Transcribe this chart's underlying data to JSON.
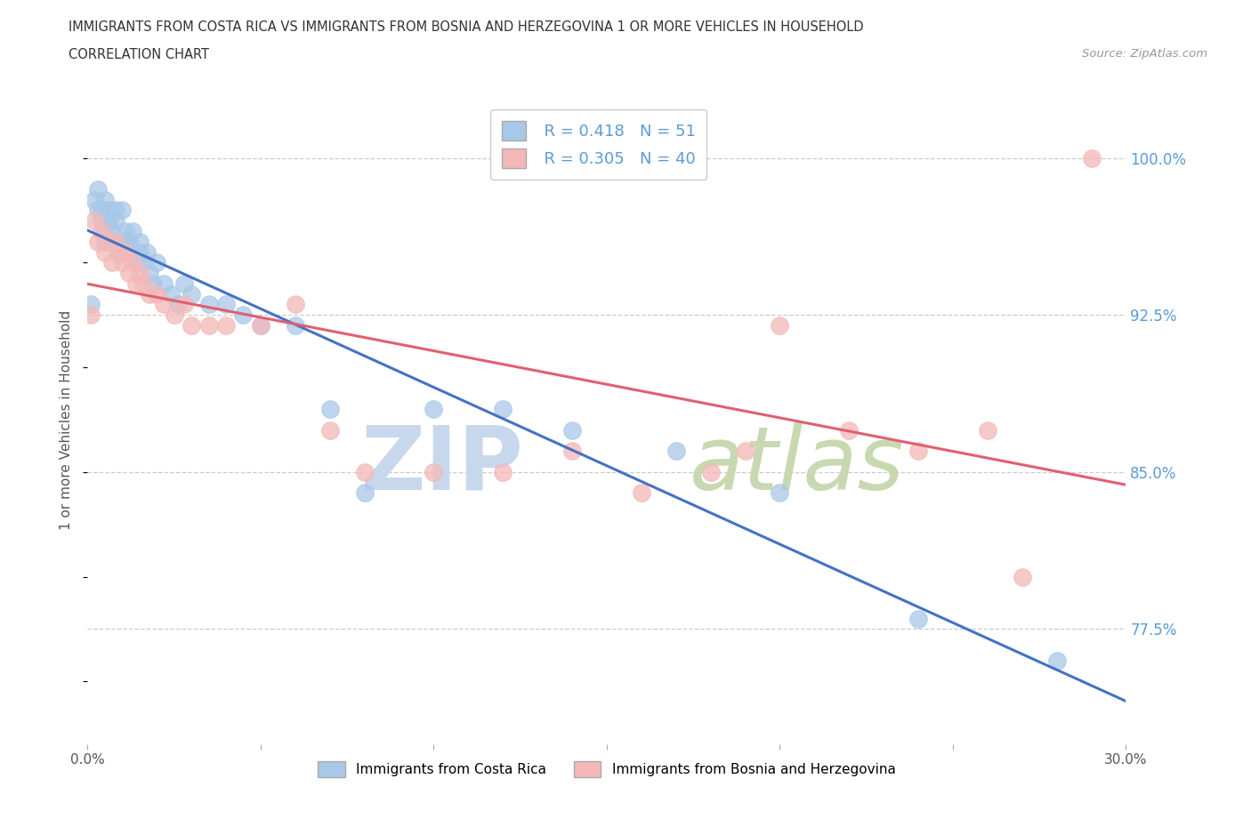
{
  "title_line1": "IMMIGRANTS FROM COSTA RICA VS IMMIGRANTS FROM BOSNIA AND HERZEGOVINA 1 OR MORE VEHICLES IN HOUSEHOLD",
  "title_line2": "CORRELATION CHART",
  "source_text": "Source: ZipAtlas.com",
  "ylabel": "1 or more Vehicles in Household",
  "xlim": [
    0.0,
    0.3
  ],
  "ylim": [
    0.72,
    1.03
  ],
  "yticks": [
    0.775,
    0.85,
    0.925,
    1.0
  ],
  "ytick_labels": [
    "77.5%",
    "85.0%",
    "92.5%",
    "100.0%"
  ],
  "xticks": [
    0.0,
    0.05,
    0.1,
    0.15,
    0.2,
    0.25,
    0.3
  ],
  "xtick_labels": [
    "0.0%",
    "",
    "",
    "",
    "",
    "",
    "30.0%"
  ],
  "legend_label1": "Immigrants from Costa Rica",
  "legend_label2": "Immigrants from Bosnia and Herzegovina",
  "R1": 0.418,
  "N1": 51,
  "R2": 0.305,
  "N2": 40,
  "color1": "#a8c8e8",
  "color2": "#f4b8b8",
  "line_color1": "#4472c4",
  "line_color2": "#e06070",
  "watermark_zip": "ZIP",
  "watermark_atlas": "atlas",
  "watermark_color_zip": "#c8d8ec",
  "watermark_color_atlas": "#c8d8b0",
  "grid_color": "#cccccc",
  "ytick_color": "#5b9bd5",
  "scatter1_x": [
    0.001,
    0.002,
    0.003,
    0.003,
    0.004,
    0.004,
    0.005,
    0.005,
    0.005,
    0.006,
    0.006,
    0.007,
    0.007,
    0.008,
    0.008,
    0.009,
    0.009,
    0.01,
    0.01,
    0.011,
    0.011,
    0.012,
    0.012,
    0.013,
    0.014,
    0.015,
    0.015,
    0.016,
    0.017,
    0.018,
    0.019,
    0.02,
    0.022,
    0.024,
    0.026,
    0.028,
    0.03,
    0.035,
    0.04,
    0.045,
    0.05,
    0.06,
    0.07,
    0.08,
    0.1,
    0.12,
    0.14,
    0.17,
    0.2,
    0.24,
    0.28
  ],
  "scatter1_y": [
    0.93,
    0.98,
    0.975,
    0.985,
    0.97,
    0.975,
    0.965,
    0.98,
    0.96,
    0.97,
    0.975,
    0.965,
    0.96,
    0.97,
    0.975,
    0.96,
    0.955,
    0.96,
    0.975,
    0.96,
    0.965,
    0.955,
    0.96,
    0.965,
    0.95,
    0.96,
    0.955,
    0.95,
    0.955,
    0.945,
    0.94,
    0.95,
    0.94,
    0.935,
    0.93,
    0.94,
    0.935,
    0.93,
    0.93,
    0.925,
    0.92,
    0.92,
    0.88,
    0.84,
    0.88,
    0.88,
    0.87,
    0.86,
    0.84,
    0.78,
    0.76
  ],
  "scatter2_x": [
    0.001,
    0.002,
    0.003,
    0.004,
    0.005,
    0.006,
    0.007,
    0.008,
    0.009,
    0.01,
    0.011,
    0.012,
    0.013,
    0.014,
    0.015,
    0.016,
    0.018,
    0.02,
    0.022,
    0.025,
    0.028,
    0.03,
    0.035,
    0.04,
    0.05,
    0.06,
    0.07,
    0.08,
    0.1,
    0.12,
    0.14,
    0.16,
    0.18,
    0.19,
    0.2,
    0.22,
    0.24,
    0.26,
    0.27,
    0.29
  ],
  "scatter2_y": [
    0.925,
    0.97,
    0.96,
    0.965,
    0.955,
    0.96,
    0.95,
    0.96,
    0.955,
    0.95,
    0.955,
    0.945,
    0.95,
    0.94,
    0.945,
    0.94,
    0.935,
    0.935,
    0.93,
    0.925,
    0.93,
    0.92,
    0.92,
    0.92,
    0.92,
    0.93,
    0.87,
    0.85,
    0.85,
    0.85,
    0.86,
    0.84,
    0.85,
    0.86,
    0.92,
    0.87,
    0.86,
    0.87,
    0.8,
    1.0
  ]
}
